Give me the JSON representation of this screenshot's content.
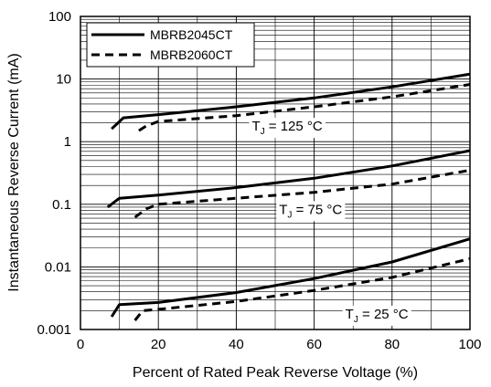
{
  "chart_data": {
    "type": "line",
    "xlabel": "Percent of Rated Peak Reverse Voltage (%)",
    "ylabel": "Instantaneous Reverse Current (mA)",
    "xlim": [
      0,
      100
    ],
    "ylim": [
      0.001,
      100
    ],
    "yscale": "log",
    "x_ticks": [
      0,
      20,
      40,
      60,
      80,
      100
    ],
    "x_tick_labels": [
      "0",
      "20",
      "40",
      "60",
      "80",
      "100"
    ],
    "y_ticks": [
      0.001,
      0.01,
      0.1,
      1,
      10,
      100
    ],
    "y_tick_labels": [
      "0.001",
      "0.01",
      "0.1",
      "1",
      "10",
      "100"
    ],
    "grid": true,
    "legend": {
      "position": "top-left",
      "entries": [
        {
          "name": "MBRB2045CT",
          "style": "solid"
        },
        {
          "name": "MBRB2060CT",
          "style": "dashed"
        }
      ]
    },
    "series": [
      {
        "name": "MBRB2045CT",
        "condition": "T_J = 125 °C",
        "style": "solid",
        "x": [
          8,
          11,
          20,
          40,
          60,
          80,
          100
        ],
        "y": [
          1.6,
          2.4,
          2.7,
          3.6,
          5.0,
          7.5,
          12
        ]
      },
      {
        "name": "MBRB2060CT",
        "condition": "T_J = 125 °C",
        "style": "dashed",
        "x": [
          15,
          17,
          20,
          40,
          60,
          80,
          100
        ],
        "y": [
          1.5,
          1.8,
          2.1,
          2.6,
          3.6,
          5.2,
          8.2
        ]
      },
      {
        "name": "MBRB2045CT",
        "condition": "T_J = 75 °C",
        "style": "solid",
        "x": [
          7,
          10,
          20,
          40,
          60,
          80,
          100
        ],
        "y": [
          0.09,
          0.125,
          0.14,
          0.185,
          0.26,
          0.41,
          0.72
        ]
      },
      {
        "name": "MBRB2060CT",
        "condition": "T_J = 75 °C",
        "style": "dashed",
        "x": [
          14,
          17,
          20,
          40,
          60,
          80,
          100
        ],
        "y": [
          0.062,
          0.085,
          0.1,
          0.125,
          0.155,
          0.21,
          0.35
        ]
      },
      {
        "name": "MBRB2045CT",
        "condition": "T_J = 25 °C",
        "style": "solid",
        "x": [
          8,
          10,
          20,
          40,
          60,
          80,
          100
        ],
        "y": [
          0.0016,
          0.0025,
          0.0027,
          0.0039,
          0.0065,
          0.012,
          0.028
        ]
      },
      {
        "name": "MBRB2060CT",
        "condition": "T_J = 25 °C",
        "style": "dashed",
        "x": [
          14,
          16,
          20,
          40,
          60,
          80,
          100
        ],
        "y": [
          0.0014,
          0.002,
          0.0021,
          0.0028,
          0.0042,
          0.0068,
          0.0135
        ]
      }
    ],
    "annotations": [
      {
        "text": "T",
        "sub": "J",
        "rest": " = 125 °C",
        "x": 44,
        "y": 1.5
      },
      {
        "text": "T",
        "sub": "J",
        "rest": " = 75 °C",
        "x": 51,
        "y": 0.07
      },
      {
        "text": "T",
        "sub": "J",
        "rest": " = 25 °C",
        "x": 68,
        "y": 0.0015
      }
    ]
  }
}
